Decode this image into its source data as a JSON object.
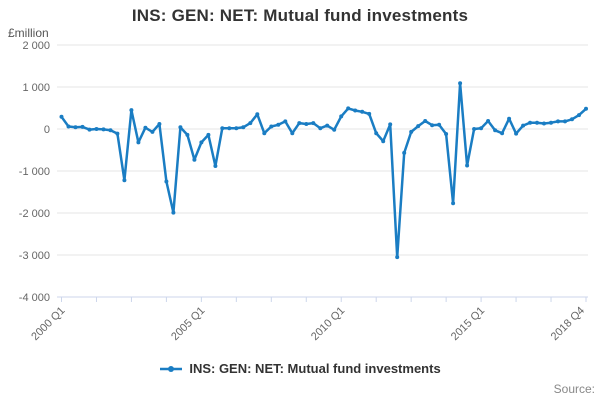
{
  "title": "INS: GEN: NET: Mutual fund investments",
  "y_axis_title": "£million",
  "legend": {
    "label": "INS: GEN: NET: Mutual fund investments"
  },
  "source_label": "Source:",
  "colors": {
    "line": "#1a7dc3",
    "grid": "#e6e6e6",
    "axis": "#ccd6eb",
    "tick_label": "#666666",
    "title": "#333333",
    "source": "#888888"
  },
  "chart_data": {
    "type": "line",
    "title": "INS: GEN: NET: Mutual fund investments",
    "xlabel": "",
    "ylabel": "£million",
    "frequency": "quarterly",
    "start": "2000 Q1",
    "end": "2018 Q4",
    "ylim": [
      -4000,
      2000
    ],
    "grid": true,
    "legend_position": "bottom",
    "markers": true,
    "y_ticks": [
      {
        "value": 2000,
        "label": "2 000"
      },
      {
        "value": 1000,
        "label": "1 000"
      },
      {
        "value": 0,
        "label": "0"
      },
      {
        "value": -1000,
        "label": "-1 000"
      },
      {
        "value": -2000,
        "label": "-2 000"
      },
      {
        "value": -3000,
        "label": "-3 000"
      },
      {
        "value": -4000,
        "label": "-4 000"
      }
    ],
    "x_tick_interval": 5,
    "labeled_ticks": [
      {
        "index": 0,
        "label": "2000 Q1"
      },
      {
        "index": 20,
        "label": "2005 Q1"
      },
      {
        "index": 40,
        "label": "2010 Q1"
      },
      {
        "index": 60,
        "label": "2015 Q1"
      },
      {
        "index": 75,
        "label": "2018 Q4"
      }
    ],
    "categories": [
      "2000 Q1",
      "2000 Q2",
      "2000 Q3",
      "2000 Q4",
      "2001 Q1",
      "2001 Q2",
      "2001 Q3",
      "2001 Q4",
      "2002 Q1",
      "2002 Q2",
      "2002 Q3",
      "2002 Q4",
      "2003 Q1",
      "2003 Q2",
      "2003 Q3",
      "2003 Q4",
      "2004 Q1",
      "2004 Q2",
      "2004 Q3",
      "2004 Q4",
      "2005 Q1",
      "2005 Q2",
      "2005 Q3",
      "2005 Q4",
      "2006 Q1",
      "2006 Q2",
      "2006 Q3",
      "2006 Q4",
      "2007 Q1",
      "2007 Q2",
      "2007 Q3",
      "2007 Q4",
      "2008 Q1",
      "2008 Q2",
      "2008 Q3",
      "2008 Q4",
      "2009 Q1",
      "2009 Q2",
      "2009 Q3",
      "2009 Q4",
      "2010 Q1",
      "2010 Q2",
      "2010 Q3",
      "2010 Q4",
      "2011 Q1",
      "2011 Q2",
      "2011 Q3",
      "2011 Q4",
      "2012 Q1",
      "2012 Q2",
      "2012 Q3",
      "2012 Q4",
      "2013 Q1",
      "2013 Q2",
      "2013 Q3",
      "2013 Q4",
      "2014 Q1",
      "2014 Q2",
      "2014 Q3",
      "2014 Q4",
      "2015 Q1",
      "2015 Q2",
      "2015 Q3",
      "2015 Q4",
      "2016 Q1",
      "2016 Q2",
      "2016 Q3",
      "2016 Q4",
      "2017 Q1",
      "2017 Q2",
      "2017 Q3",
      "2017 Q4",
      "2018 Q1",
      "2018 Q2",
      "2018 Q3",
      "2018 Q4"
    ],
    "values": [
      290,
      60,
      40,
      50,
      -15,
      0,
      -10,
      -30,
      -110,
      -1220,
      450,
      -320,
      30,
      -70,
      120,
      -1250,
      -1990,
      40,
      -140,
      -730,
      -320,
      -140,
      -880,
      20,
      20,
      20,
      40,
      140,
      350,
      -100,
      60,
      100,
      180,
      -100,
      140,
      120,
      140,
      20,
      80,
      -20,
      300,
      490,
      440,
      410,
      360,
      -100,
      -290,
      110,
      -3050,
      -570,
      -70,
      70,
      190,
      90,
      100,
      -120,
      -1770,
      1090,
      -870,
      0,
      20,
      190,
      -30,
      -100,
      245,
      -110,
      80,
      150,
      150,
      130,
      150,
      180,
      180,
      230,
      330,
      480
    ]
  }
}
